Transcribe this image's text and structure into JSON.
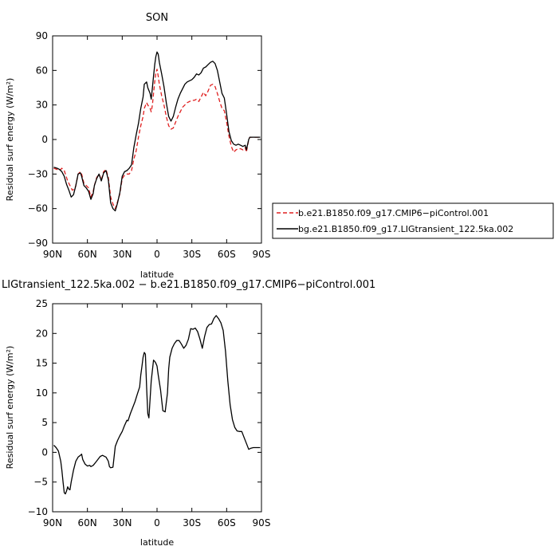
{
  "chart_data": [
    {
      "type": "line",
      "title": "SON",
      "xlabel": "latitude",
      "ylabel": "Residual surf energy (W/m²)",
      "ylim": [
        -90,
        90
      ],
      "xlim": [
        -90,
        90
      ],
      "x_axis_direction": "north-to-south",
      "xticks": [
        -90,
        -60,
        -30,
        0,
        30,
        60,
        90
      ],
      "xtick_labels": [
        "90N",
        "60N",
        "30N",
        "0",
        "30S",
        "60S",
        "90S"
      ],
      "yticks": [
        -90,
        -60,
        -30,
        0,
        30,
        60,
        90
      ],
      "ytick_labels": [
        "−90",
        "−60",
        "−30",
        "0",
        "30",
        "60",
        "90"
      ],
      "legend_position": "right",
      "series": [
        {
          "name": "b.e21.B1850.f09_g17.CMIP6−piControl.001",
          "color": "#e02020",
          "dash": "dashed",
          "x": [
            -89,
            -86,
            -84,
            -82,
            -80,
            -77,
            -75,
            -73,
            -71,
            -70,
            -68,
            -66,
            -65,
            -63,
            -61,
            -59,
            -57,
            -55,
            -54,
            -52,
            -50,
            -48,
            -46,
            -44,
            -42,
            -40,
            -38,
            -36,
            -34,
            -32,
            -30,
            -28,
            -26,
            -24,
            -22,
            -20,
            -18,
            -16,
            -14,
            -12,
            -11,
            -9,
            -8,
            -6,
            -5,
            -4,
            -3,
            -2,
            -1,
            0,
            1,
            2,
            4,
            6,
            8,
            10,
            12,
            14,
            16,
            18,
            20,
            22,
            24,
            26,
            28,
            30,
            32,
            34,
            36,
            38,
            40,
            42,
            44,
            46,
            48,
            50,
            52,
            54,
            56,
            58,
            60,
            62,
            64,
            66,
            68,
            70,
            72,
            74,
            76,
            77,
            79,
            80,
            82,
            84,
            86,
            88,
            89
          ],
          "y": [
            -25,
            -26,
            -27,
            -25,
            -27,
            -36,
            -40,
            -44,
            -43,
            -40,
            -30,
            -28,
            -30,
            -38,
            -40,
            -42,
            -50,
            -45,
            -40,
            -33,
            -30,
            -35,
            -28,
            -26,
            -33,
            -50,
            -56,
            -60,
            -54,
            -47,
            -34,
            -31,
            -30,
            -30,
            -27,
            -17,
            -10,
            2,
            12,
            20,
            27,
            32,
            30,
            27,
            24,
            30,
            40,
            50,
            58,
            61,
            55,
            48,
            38,
            30,
            20,
            12,
            9,
            10,
            15,
            20,
            24,
            28,
            30,
            32,
            33,
            34,
            34,
            35,
            33,
            37,
            41,
            38,
            42,
            47,
            48,
            46,
            40,
            33,
            27,
            25,
            15,
            3,
            -6,
            -11,
            -9,
            -8,
            -8,
            -9,
            -7,
            -11,
            0,
            2,
            2,
            2,
            2,
            2,
            2
          ]
        },
        {
          "name": "bg.e21.B1850.f09_g17.LIGtransient_122.5ka.002",
          "color": "#000000",
          "dash": "solid",
          "x": [
            -89,
            -86,
            -84,
            -82,
            -80,
            -78,
            -76,
            -74,
            -72,
            -70,
            -68,
            -66,
            -65,
            -63,
            -61,
            -59,
            -57,
            -55,
            -54,
            -52,
            -50,
            -48,
            -46,
            -44,
            -42,
            -40,
            -38,
            -36,
            -34,
            -32,
            -30,
            -28,
            -26,
            -24,
            -22,
            -20,
            -18,
            -16,
            -14,
            -12,
            -11,
            -9,
            -8,
            -6,
            -5,
            -4,
            -3,
            -2,
            -1,
            0,
            1,
            2,
            4,
            6,
            8,
            10,
            12,
            14,
            16,
            18,
            20,
            22,
            24,
            26,
            28,
            30,
            32,
            34,
            36,
            38,
            40,
            42,
            44,
            46,
            48,
            50,
            52,
            54,
            56,
            58,
            60,
            62,
            64,
            66,
            68,
            70,
            72,
            74,
            76,
            77,
            79,
            80,
            82,
            84,
            86,
            88,
            89
          ],
          "y": [
            -24,
            -25,
            -26,
            -28,
            -32,
            -39,
            -44,
            -50,
            -48,
            -40,
            -30,
            -29,
            -32,
            -40,
            -42,
            -45,
            -52,
            -47,
            -40,
            -34,
            -30,
            -36,
            -29,
            -27,
            -35,
            -55,
            -60,
            -62,
            -55,
            -46,
            -32,
            -28,
            -27,
            -25,
            -22,
            -7,
            4,
            14,
            27,
            37,
            48,
            50,
            45,
            40,
            35,
            45,
            55,
            65,
            72,
            76,
            74,
            67,
            57,
            46,
            32,
            20,
            16,
            20,
            28,
            35,
            40,
            44,
            48,
            50,
            51,
            52,
            54,
            57,
            56,
            58,
            62,
            63,
            65,
            67,
            68,
            66,
            60,
            50,
            40,
            36,
            22,
            7,
            -1,
            -4,
            -5,
            -4,
            -5,
            -6,
            -5,
            -9,
            0,
            2,
            2,
            2,
            2,
            2,
            2
          ]
        }
      ]
    },
    {
      "type": "line",
      "title": "LIGtransient_122.5ka.002 − b.e21.B1850.f09_g17.CMIP6−piControl.001",
      "xlabel": "latitude",
      "ylabel": "Residual surf energy (W/m²)",
      "ylim": [
        -10,
        25
      ],
      "xlim": [
        -90,
        90
      ],
      "x_axis_direction": "north-to-south",
      "xticks": [
        -90,
        -60,
        -30,
        0,
        30,
        60,
        90
      ],
      "xtick_labels": [
        "90N",
        "60N",
        "30N",
        "0",
        "30S",
        "60S",
        "90S"
      ],
      "yticks": [
        -10,
        -5,
        0,
        5,
        10,
        15,
        20,
        25
      ],
      "ytick_labels": [
        "−10",
        "−5",
        "0",
        "5",
        "10",
        "15",
        "20",
        "25"
      ],
      "series": [
        {
          "color": "#000000",
          "dash": "solid",
          "x": [
            -89,
            -87,
            -85,
            -83,
            -82,
            -81,
            -80,
            -79,
            -78,
            -77,
            -76,
            -75,
            -74,
            -72,
            -70,
            -68,
            -66,
            -65,
            -64,
            -62,
            -60,
            -58,
            -57,
            -55,
            -53,
            -51,
            -49,
            -47,
            -46,
            -44,
            -42,
            -41,
            -40,
            -38,
            -36,
            -34,
            -32,
            -30,
            -28,
            -26,
            -25,
            -23,
            -21,
            -19,
            -17,
            -15,
            -14,
            -13,
            -12,
            -11,
            -10,
            -9,
            -8,
            -7,
            -6,
            -5,
            -3,
            -2,
            -1,
            0,
            1,
            3,
            5,
            7,
            9,
            10,
            11,
            13,
            15,
            17,
            19,
            21,
            23,
            25,
            27,
            29,
            31,
            33,
            35,
            37,
            39,
            41,
            43,
            45,
            47,
            49,
            51,
            53,
            55,
            57,
            59,
            61,
            63,
            65,
            67,
            69,
            71,
            73,
            75,
            77,
            79,
            81,
            83,
            85,
            87,
            89
          ],
          "y": [
            1.2,
            0.8,
            0.2,
            -1.5,
            -3,
            -5,
            -6.8,
            -7,
            -6.5,
            -5.8,
            -6.2,
            -6.3,
            -5,
            -3,
            -1.5,
            -0.8,
            -0.5,
            -0.3,
            -1.2,
            -2,
            -2.3,
            -2.2,
            -2.4,
            -2.2,
            -1.7,
            -1.2,
            -0.7,
            -0.5,
            -0.6,
            -0.8,
            -1.5,
            -2.4,
            -2.6,
            -2.5,
            1,
            2,
            2.8,
            3.5,
            4.5,
            5.4,
            5.3,
            6.5,
            7.5,
            8.5,
            9.8,
            11,
            13,
            14.5,
            16,
            16.8,
            16.5,
            11,
            6.5,
            5.8,
            9,
            12,
            15.5,
            15.3,
            15,
            14.5,
            13,
            10.5,
            7,
            6.8,
            10,
            14,
            16,
            17.5,
            18.3,
            18.8,
            18.8,
            18.2,
            17.5,
            18,
            19,
            20.8,
            20.7,
            20.9,
            20.3,
            19,
            17.5,
            19.5,
            21,
            21.5,
            21.6,
            22.5,
            23,
            22.5,
            21.8,
            20.5,
            17,
            12,
            8,
            5.5,
            4.2,
            3.6,
            3.5,
            3.5,
            2.5,
            1.5,
            0.5,
            0.7,
            0.8,
            0.8,
            0.8,
            0.8
          ]
        }
      ]
    }
  ]
}
